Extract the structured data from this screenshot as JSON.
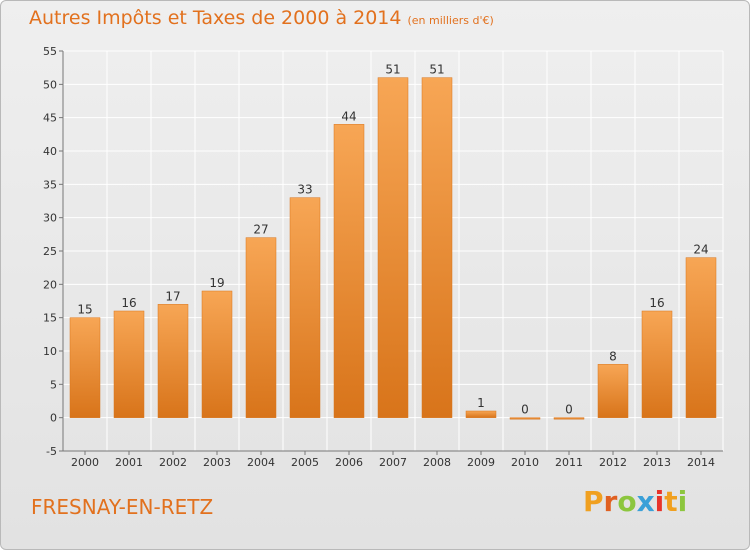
{
  "chart_data": {
    "type": "bar",
    "title": "Autres Impôts et Taxes de 2000 à 2014",
    "subtitle": "(en milliers d'€)",
    "xlabel": "",
    "ylabel": "",
    "categories": [
      "2000",
      "2001",
      "2002",
      "2003",
      "2004",
      "2005",
      "2006",
      "2007",
      "2008",
      "2009",
      "2010",
      "2011",
      "2012",
      "2013",
      "2014"
    ],
    "values": [
      15,
      16,
      17,
      19,
      27,
      33,
      44,
      51,
      51,
      1,
      0,
      0,
      8,
      16,
      24
    ],
    "ylim": [
      -5,
      55
    ],
    "yticks": [
      -5,
      0,
      5,
      10,
      15,
      20,
      25,
      30,
      35,
      40,
      45,
      50,
      55
    ],
    "grid": true,
    "legend": "none",
    "colors": {
      "bar_light": "#f7a655",
      "bar_dark": "#d8741a",
      "title": "#e2711e",
      "grid": "#ffffff",
      "text": "#333333"
    }
  },
  "footer": {
    "town": "FRESNAY-EN-RETZ",
    "logo_letters": [
      "P",
      "r",
      "o",
      "x",
      "i",
      "t",
      "i"
    ],
    "logo_colors": [
      "#f0a020",
      "#e06020",
      "#8cc63e",
      "#3aa0d8",
      "#e8332a",
      "#f0a020",
      "#8cc63e"
    ]
  }
}
